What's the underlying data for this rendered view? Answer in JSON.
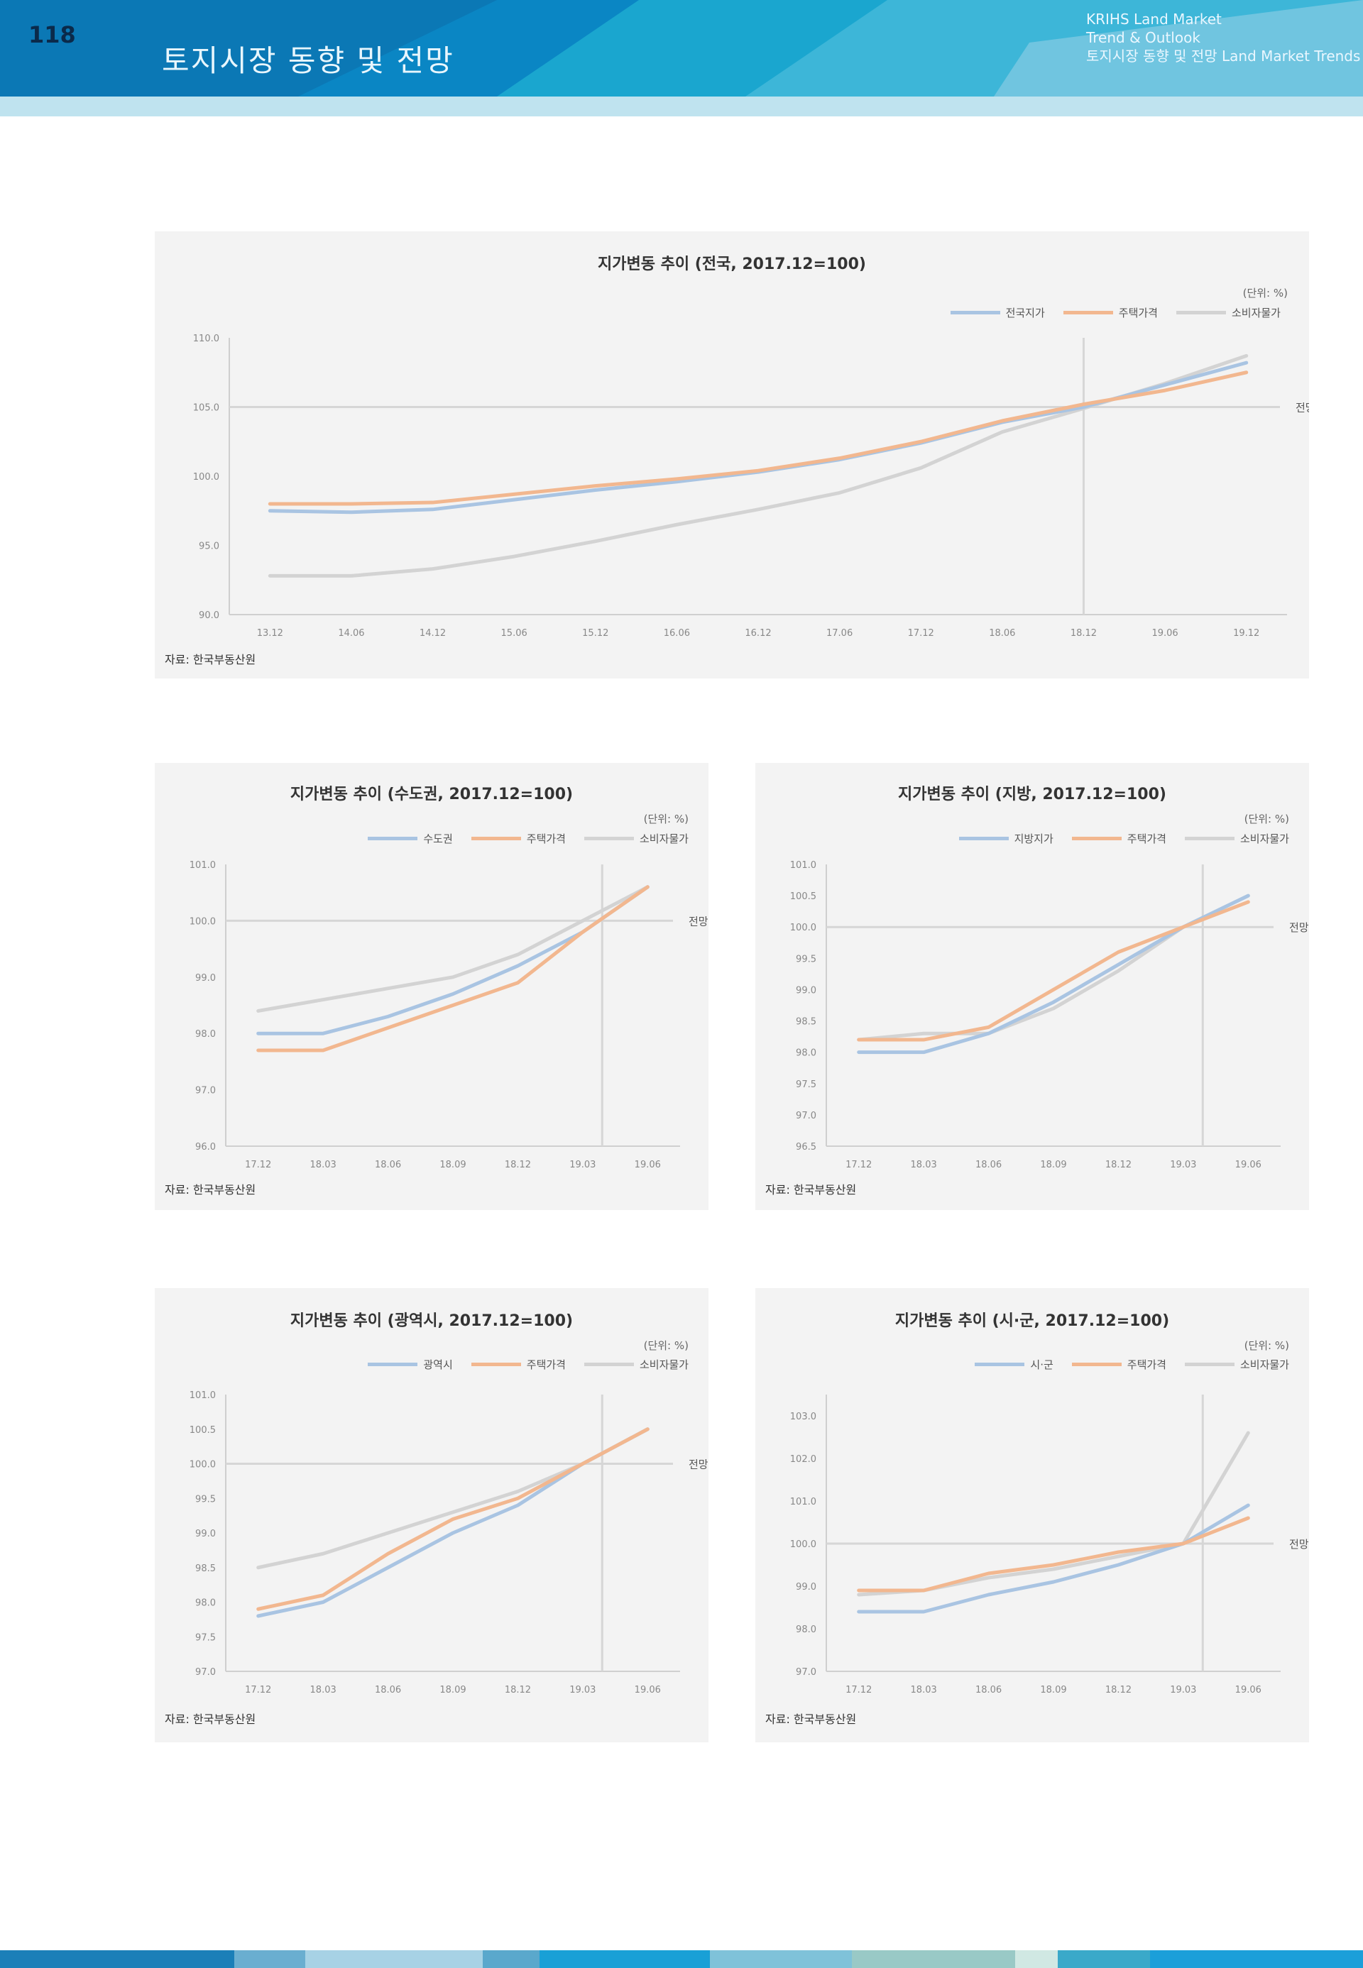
{
  "header": {
    "page_number": "118",
    "title": "토지시장 동향 및 전망",
    "tagline": [
      "KRIHS Land Market",
      "Trend & Outlook",
      "토지시장 동향 및 전망 Land Market Trends"
    ]
  },
  "colors": {
    "header": "#0a86c4",
    "series": [
      "#a9c4e2",
      "#f2b78f",
      "#d3d3d3"
    ],
    "footer": [
      "#1b7fb8",
      "#6aaed0",
      "#a7d2e5",
      "#5aa8cc",
      "#19a0d6",
      "#7fc2d9",
      "#99c9c6",
      "#d0e8e3",
      "#3aa9c9",
      "#1b9fd9"
    ]
  },
  "charts": [
    {
      "title": "지가변동 추이 (전국, 2017.12=100)",
      "unit": "(단위: %)",
      "source": "자료: 한국부동산원",
      "note": "전망",
      "legend": [
        "전국지가",
        "주택가격",
        "소비자물가"
      ]
    },
    {
      "title": "지가변동 추이 (수도권, 2017.12=100)",
      "unit": "(단위: %)",
      "source": "자료: 한국부동산원",
      "note": "전망",
      "legend": [
        "수도권",
        "주택가격",
        "소비자물가"
      ]
    },
    {
      "title": "지가변동 추이 (지방, 2017.12=100)",
      "unit": "(단위: %)",
      "source": "자료: 한국부동산원",
      "note": "전망",
      "legend": [
        "지방지가",
        "주택가격",
        "소비자물가"
      ]
    },
    {
      "title": "지가변동 추이 (광역시, 2017.12=100)",
      "unit": "(단위: %)",
      "source": "자료: 한국부동산원",
      "note": "전망",
      "legend": [
        "광역시",
        "주택가격",
        "소비자물가"
      ]
    },
    {
      "title": "지가변동 추이 (시·군, 2017.12=100)",
      "unit": "(단위: %)",
      "source": "자료: 한국부동산원",
      "note": "전망",
      "legend": [
        "시·군",
        "주택가격",
        "소비자물가"
      ]
    }
  ],
  "chart_data": [
    {
      "type": "line",
      "x": [
        "13.12",
        "14.06",
        "14.12",
        "15.06",
        "15.12",
        "16.06",
        "16.12",
        "17.06",
        "17.12",
        "18.06",
        "18.12",
        "19.06",
        "19.12"
      ],
      "ylim": [
        90,
        110
      ],
      "yticks": [
        "90.0",
        "95.0",
        "100.0",
        "105.0",
        "110.0"
      ],
      "reference": 105,
      "divider_index": 10,
      "series": [
        {
          "name": "전국지가",
          "values": [
            97.5,
            97.4,
            97.6,
            98.3,
            99.0,
            99.6,
            100.3,
            101.2,
            102.4,
            103.9,
            105.0,
            106.6,
            108.2
          ]
        },
        {
          "name": "주택가격",
          "values": [
            98.0,
            98.0,
            98.1,
            98.7,
            99.3,
            99.8,
            100.4,
            101.3,
            102.5,
            104.0,
            105.2,
            106.2,
            107.5
          ]
        },
        {
          "name": "소비자물가",
          "values": [
            92.8,
            92.8,
            93.3,
            94.2,
            95.3,
            96.5,
            97.6,
            98.8,
            100.6,
            103.2,
            104.9,
            106.7,
            108.7
          ]
        }
      ]
    },
    {
      "type": "line",
      "x": [
        "17.12",
        "18.03",
        "18.06",
        "18.09",
        "18.12",
        "19.03",
        "19.06"
      ],
      "ylim": [
        96,
        101
      ],
      "yticks": [
        "96.0",
        "97.0",
        "98.0",
        "99.0",
        "100.0",
        "101.0"
      ],
      "reference": 100,
      "divider_index": 5.3,
      "series": [
        {
          "name": "수도권",
          "values": [
            98.0,
            98.0,
            98.3,
            98.7,
            99.2,
            99.8,
            100.6
          ]
        },
        {
          "name": "주택가격",
          "values": [
            97.7,
            97.7,
            98.1,
            98.5,
            98.9,
            99.8,
            100.6
          ]
        },
        {
          "name": "소비자물가",
          "values": [
            98.4,
            98.6,
            98.8,
            99.0,
            99.4,
            100.0,
            100.6
          ]
        }
      ]
    },
    {
      "type": "line",
      "x": [
        "17.12",
        "18.03",
        "18.06",
        "18.09",
        "18.12",
        "19.03",
        "19.06"
      ],
      "ylim": [
        96.5,
        101
      ],
      "yticks": [
        "96.5",
        "97.0",
        "97.5",
        "98.0",
        "98.5",
        "99.0",
        "99.5",
        "100.0",
        "100.5",
        "101.0"
      ],
      "reference": 100,
      "divider_index": 5.3,
      "series": [
        {
          "name": "지방지가",
          "values": [
            98.0,
            98.0,
            98.3,
            98.8,
            99.4,
            100.0,
            100.5
          ]
        },
        {
          "name": "주택가격",
          "values": [
            98.2,
            98.2,
            98.4,
            99.0,
            99.6,
            100.0,
            100.4
          ]
        },
        {
          "name": "소비자물가",
          "values": [
            98.2,
            98.3,
            98.3,
            98.7,
            99.3,
            100.0,
            100.5
          ]
        }
      ]
    },
    {
      "type": "line",
      "x": [
        "17.12",
        "18.03",
        "18.06",
        "18.09",
        "18.12",
        "19.03",
        "19.06"
      ],
      "ylim": [
        97.0,
        101.0
      ],
      "yticks": [
        "97.0",
        "97.5",
        "98.0",
        "98.5",
        "99.0",
        "99.5",
        "100.0",
        "100.5",
        "101.0"
      ],
      "reference": 100,
      "divider_index": 5.3,
      "series": [
        {
          "name": "광역시",
          "values": [
            97.8,
            98.0,
            98.5,
            99.0,
            99.4,
            100.0,
            100.5
          ]
        },
        {
          "name": "주택가격",
          "values": [
            97.9,
            98.1,
            98.7,
            99.2,
            99.5,
            100.0,
            100.5
          ]
        },
        {
          "name": "소비자물가",
          "values": [
            98.5,
            98.7,
            99.0,
            99.3,
            99.6,
            100.0,
            100.5
          ]
        }
      ]
    },
    {
      "type": "line",
      "x": [
        "17.12",
        "18.03",
        "18.06",
        "18.09",
        "18.12",
        "19.03",
        "19.06"
      ],
      "ylim": [
        97.0,
        103.5
      ],
      "yticks": [
        "97.0",
        "98.0",
        "99.0",
        "100.0",
        "101.0",
        "102.0",
        "103.0"
      ],
      "reference": 100,
      "divider_index": 5.3,
      "series": [
        {
          "name": "시·군",
          "values": [
            98.4,
            98.4,
            98.8,
            99.1,
            99.5,
            100.0,
            100.9
          ]
        },
        {
          "name": "주택가격",
          "values": [
            98.9,
            98.9,
            99.3,
            99.5,
            99.8,
            100.0,
            100.6
          ]
        },
        {
          "name": "소비자물가",
          "values": [
            98.8,
            98.9,
            99.2,
            99.4,
            99.7,
            100.0,
            102.6
          ]
        }
      ]
    }
  ]
}
